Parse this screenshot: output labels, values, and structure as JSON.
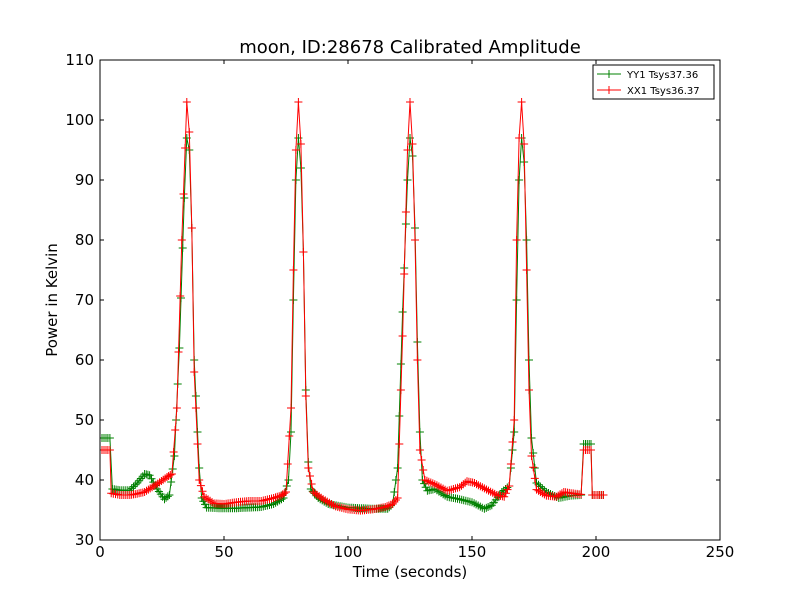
{
  "chart_data": {
    "type": "line",
    "title": "moon, ID:28678 Calibrated Amplitude",
    "xlabel": "Time (seconds)",
    "ylabel": "Power in Kelvin",
    "xlim": [
      0,
      250
    ],
    "ylim": [
      30,
      110
    ],
    "xticks": [
      "0",
      "50",
      "100",
      "150",
      "200",
      "250"
    ],
    "yticks": [
      "30",
      "40",
      "50",
      "60",
      "70",
      "80",
      "90",
      "100",
      "110"
    ],
    "grid": false,
    "legend_position": "top-right",
    "marker": "plus",
    "series": [
      {
        "name": "YY1 Tsys37.36",
        "color": "#008000",
        "points": [
          [
            0,
            47
          ],
          [
            4,
            47
          ],
          [
            5,
            38.5
          ],
          [
            8,
            38.3
          ],
          [
            12,
            38.3
          ],
          [
            15,
            39.5
          ],
          [
            18,
            41
          ],
          [
            20,
            40.8
          ],
          [
            23,
            38.5
          ],
          [
            26,
            36.8
          ],
          [
            28,
            37.5
          ],
          [
            30,
            44
          ],
          [
            32,
            62
          ],
          [
            34,
            87
          ],
          [
            35,
            97
          ],
          [
            36,
            95
          ],
          [
            37,
            82
          ],
          [
            38,
            60
          ],
          [
            40,
            42
          ],
          [
            41,
            37
          ],
          [
            43,
            35.4
          ],
          [
            48,
            35.3
          ],
          [
            55,
            35.3
          ],
          [
            65,
            35.5
          ],
          [
            70,
            36
          ],
          [
            74,
            37
          ],
          [
            76,
            40
          ],
          [
            77,
            48
          ],
          [
            78,
            70
          ],
          [
            79,
            90
          ],
          [
            80,
            97
          ],
          [
            81,
            92
          ],
          [
            82,
            78
          ],
          [
            83,
            55
          ],
          [
            84,
            43
          ],
          [
            85,
            38.5
          ],
          [
            88,
            37
          ],
          [
            92,
            36
          ],
          [
            100,
            35.4
          ],
          [
            110,
            35.2
          ],
          [
            116,
            35.2
          ],
          [
            118,
            36
          ],
          [
            120,
            42
          ],
          [
            122,
            68
          ],
          [
            124,
            90
          ],
          [
            125,
            97
          ],
          [
            126,
            94
          ],
          [
            127,
            82
          ],
          [
            128,
            63
          ],
          [
            129,
            48
          ],
          [
            130,
            40
          ],
          [
            132,
            38.2
          ],
          [
            135,
            38.5
          ],
          [
            140,
            37.2
          ],
          [
            145,
            36.8
          ],
          [
            150,
            36.3
          ],
          [
            155,
            35.2
          ],
          [
            158,
            35.8
          ],
          [
            162,
            38
          ],
          [
            165,
            39
          ],
          [
            167,
            48
          ],
          [
            168,
            70
          ],
          [
            169,
            90
          ],
          [
            170,
            97
          ],
          [
            171,
            93
          ],
          [
            172,
            80
          ],
          [
            173,
            60
          ],
          [
            174,
            47
          ],
          [
            176,
            39.5
          ],
          [
            180,
            38
          ],
          [
            185,
            37
          ],
          [
            190,
            37.4
          ],
          [
            194,
            37.5
          ],
          [
            195,
            46
          ],
          [
            198,
            46
          ],
          [
            198.5,
            37.5
          ],
          [
            203,
            37.5
          ]
        ]
      },
      {
        "name": "XX1 Tsys36.37",
        "color": "#ff0000",
        "points": [
          [
            0,
            45
          ],
          [
            4,
            45
          ],
          [
            4.5,
            37.8
          ],
          [
            8,
            37.5
          ],
          [
            12,
            37.5
          ],
          [
            15,
            37.7
          ],
          [
            18,
            38
          ],
          [
            21,
            38.8
          ],
          [
            24,
            39.6
          ],
          [
            27,
            40.5
          ],
          [
            29,
            41
          ],
          [
            31,
            52
          ],
          [
            33,
            80
          ],
          [
            35,
            103
          ],
          [
            36,
            98
          ],
          [
            37,
            82
          ],
          [
            38,
            58
          ],
          [
            40,
            40
          ],
          [
            42,
            37.2
          ],
          [
            46,
            36.1
          ],
          [
            50,
            36
          ],
          [
            55,
            36.3
          ],
          [
            60,
            36.5
          ],
          [
            65,
            36.5
          ],
          [
            70,
            37
          ],
          [
            73,
            37.4
          ],
          [
            75,
            38
          ],
          [
            77,
            52
          ],
          [
            78,
            75
          ],
          [
            79,
            95
          ],
          [
            80,
            103
          ],
          [
            81,
            96
          ],
          [
            82,
            78
          ],
          [
            83,
            54
          ],
          [
            84,
            42
          ],
          [
            86,
            38
          ],
          [
            90,
            36.8
          ],
          [
            95,
            35.6
          ],
          [
            100,
            35.1
          ],
          [
            105,
            34.9
          ],
          [
            110,
            35.1
          ],
          [
            115,
            35.5
          ],
          [
            118,
            36
          ],
          [
            120,
            37
          ],
          [
            122,
            64
          ],
          [
            124,
            95
          ],
          [
            125,
            103
          ],
          [
            126,
            96
          ],
          [
            127,
            80
          ],
          [
            128,
            60
          ],
          [
            129,
            45
          ],
          [
            131,
            40
          ],
          [
            135,
            39.3
          ],
          [
            140,
            38.2
          ],
          [
            145,
            38.8
          ],
          [
            148,
            39.8
          ],
          [
            151,
            39.5
          ],
          [
            155,
            38.6
          ],
          [
            160,
            37.5
          ],
          [
            163,
            37.2
          ],
          [
            165,
            39
          ],
          [
            167,
            50
          ],
          [
            168,
            80
          ],
          [
            169,
            97
          ],
          [
            170,
            103
          ],
          [
            171,
            96
          ],
          [
            172,
            75
          ],
          [
            173,
            55
          ],
          [
            174,
            44
          ],
          [
            176,
            38.4
          ],
          [
            180,
            37.4
          ],
          [
            184,
            37.2
          ],
          [
            187,
            38
          ],
          [
            190,
            37.8
          ],
          [
            194,
            37.6
          ],
          [
            195,
            45
          ],
          [
            198,
            45
          ],
          [
            198.5,
            37.5
          ],
          [
            203,
            37.5
          ]
        ]
      }
    ]
  }
}
